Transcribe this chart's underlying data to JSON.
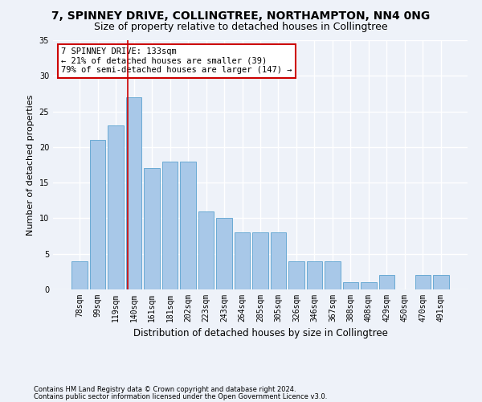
{
  "title1": "7, SPINNEY DRIVE, COLLINGTREE, NORTHAMPTON, NN4 0NG",
  "title2": "Size of property relative to detached houses in Collingtree",
  "xlabel": "Distribution of detached houses by size in Collingtree",
  "ylabel": "Number of detached properties",
  "categories": [
    "78sqm",
    "99sqm",
    "119sqm",
    "140sqm",
    "161sqm",
    "181sqm",
    "202sqm",
    "223sqm",
    "243sqm",
    "264sqm",
    "285sqm",
    "305sqm",
    "326sqm",
    "346sqm",
    "367sqm",
    "388sqm",
    "408sqm",
    "429sqm",
    "450sqm",
    "470sqm",
    "491sqm"
  ],
  "values": [
    4,
    21,
    23,
    27,
    17,
    18,
    18,
    11,
    10,
    8,
    8,
    8,
    4,
    4,
    4,
    1,
    1,
    2,
    0,
    2,
    2
  ],
  "bar_color": "#a8c8e8",
  "bar_edge_color": "#6aaad4",
  "vline_x_index": 2.67,
  "annotation_text_line1": "7 SPINNEY DRIVE: 133sqm",
  "annotation_text_line2": "← 21% of detached houses are smaller (39)",
  "annotation_text_line3": "79% of semi-detached houses are larger (147) →",
  "ylim": [
    0,
    35
  ],
  "yticks": [
    0,
    5,
    10,
    15,
    20,
    25,
    30,
    35
  ],
  "footnote1": "Contains HM Land Registry data © Crown copyright and database right 2024.",
  "footnote2": "Contains public sector information licensed under the Open Government Licence v3.0.",
  "background_color": "#eef2f9",
  "grid_color": "#ffffff",
  "title1_fontsize": 10,
  "title2_fontsize": 9,
  "xlabel_fontsize": 8.5,
  "ylabel_fontsize": 8,
  "tick_fontsize": 7,
  "annotation_box_color": "#ffffff",
  "annotation_box_edge_color": "#cc0000",
  "annotation_fontsize": 7.5,
  "footnote_fontsize": 6
}
